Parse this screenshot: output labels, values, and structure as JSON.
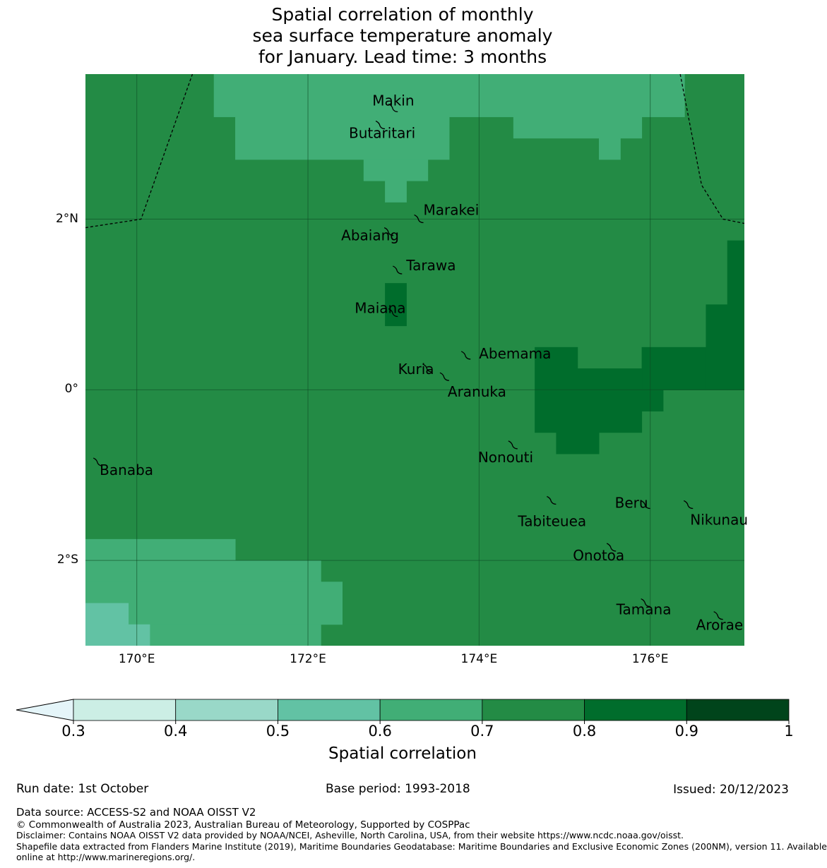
{
  "title": {
    "line1": "Spatial correlation of monthly",
    "line2": "sea surface temperature anomaly",
    "line3": "for January. Lead time: 3 months"
  },
  "map": {
    "lon_range": [
      169.4,
      177.1
    ],
    "lat_range": [
      -3.0,
      3.7
    ],
    "x_ticks": [
      {
        "lon": 170,
        "label": "170°E"
      },
      {
        "lon": 172,
        "label": "172°E"
      },
      {
        "lon": 174,
        "label": "174°E"
      },
      {
        "lon": 176,
        "label": "176°E"
      }
    ],
    "y_ticks": [
      {
        "lat": 2,
        "label": "2°N"
      },
      {
        "lat": 0,
        "label": "0°"
      },
      {
        "lat": -2,
        "label": "2°S"
      }
    ],
    "background_class": "0.7-0.8",
    "correlation_regions": [
      {
        "class": "0.6-0.7",
        "lon": [
          170.9,
          176.4
        ],
        "lat": [
          3.2,
          3.7
        ]
      },
      {
        "class": "0.6-0.7",
        "lon": [
          171.15,
          173.65
        ],
        "lat": [
          2.7,
          3.2
        ]
      },
      {
        "class": "0.6-0.7",
        "lon": [
          172.65,
          173.4
        ],
        "lat": [
          2.45,
          2.7
        ]
      },
      {
        "class": "0.6-0.7",
        "lon": [
          172.9,
          173.15
        ],
        "lat": [
          2.2,
          2.45
        ]
      },
      {
        "class": "0.6-0.7",
        "lon": [
          174.4,
          175.9
        ],
        "lat": [
          2.95,
          3.2
        ]
      },
      {
        "class": "0.6-0.7",
        "lon": [
          175.4,
          175.65
        ],
        "lat": [
          2.7,
          2.95
        ]
      },
      {
        "class": "0.8-0.9",
        "lon": [
          172.9,
          173.15
        ],
        "lat": [
          0.75,
          1.25
        ]
      },
      {
        "class": "0.8-0.9",
        "lon": [
          176.9,
          177.1
        ],
        "lat": [
          0.0,
          1.75
        ]
      },
      {
        "class": "0.8-0.9",
        "lon": [
          176.65,
          176.9
        ],
        "lat": [
          0.0,
          1.0
        ]
      },
      {
        "class": "0.8-0.9",
        "lon": [
          175.9,
          176.65
        ],
        "lat": [
          0.0,
          0.5
        ]
      },
      {
        "class": "0.8-0.9",
        "lon": [
          174.65,
          175.9
        ],
        "lat": [
          0.0,
          0.25
        ]
      },
      {
        "class": "0.8-0.9",
        "lon": [
          174.65,
          175.15
        ],
        "lat": [
          0.25,
          0.5
        ]
      },
      {
        "class": "0.8-0.9",
        "lon": [
          174.65,
          176.15
        ],
        "lat": [
          -0.25,
          0.0
        ]
      },
      {
        "class": "0.8-0.9",
        "lon": [
          174.65,
          175.9
        ],
        "lat": [
          -0.5,
          -0.25
        ]
      },
      {
        "class": "0.8-0.9",
        "lon": [
          174.9,
          175.4
        ],
        "lat": [
          -0.75,
          -0.5
        ]
      },
      {
        "class": "0.6-0.7",
        "lon": [
          169.4,
          171.15
        ],
        "lat": [
          -2.0,
          -1.75
        ]
      },
      {
        "class": "0.6-0.7",
        "lon": [
          169.4,
          172.15
        ],
        "lat": [
          -2.25,
          -2.0
        ]
      },
      {
        "class": "0.6-0.7",
        "lon": [
          169.4,
          172.4
        ],
        "lat": [
          -2.75,
          -2.25
        ]
      },
      {
        "class": "0.6-0.7",
        "lon": [
          169.9,
          172.15
        ],
        "lat": [
          -3.0,
          -2.75
        ]
      },
      {
        "class": "0.5-0.6",
        "lon": [
          169.4,
          169.9
        ],
        "lat": [
          -2.75,
          -2.5
        ]
      },
      {
        "class": "0.5-0.6",
        "lon": [
          169.4,
          170.15
        ],
        "lat": [
          -3.0,
          -2.75
        ]
      }
    ],
    "eez_boundaries": [
      [
        [
          169.4,
          1.9
        ],
        [
          170.05,
          2.0
        ],
        [
          170.65,
          3.7
        ]
      ],
      [
        [
          176.35,
          3.7
        ],
        [
          176.6,
          2.4
        ],
        [
          176.85,
          2.0
        ],
        [
          177.1,
          1.95
        ]
      ]
    ],
    "islands": [
      {
        "name": "Makin",
        "lon": 173.0,
        "lat": 3.3,
        "label_dx": -30,
        "label_dy": -10
      },
      {
        "name": "Butaritari",
        "lon": 172.85,
        "lat": 3.1,
        "label_dx": -45,
        "label_dy": 12
      },
      {
        "name": "Marakei",
        "lon": 173.3,
        "lat": 2.0,
        "label_dx": 6,
        "label_dy": -12
      },
      {
        "name": "Abaiang",
        "lon": 172.95,
        "lat": 1.85,
        "label_dx": -68,
        "label_dy": 6
      },
      {
        "name": "Tarawa",
        "lon": 173.05,
        "lat": 1.4,
        "label_dx": 12,
        "label_dy": -6
      },
      {
        "name": "Maiana",
        "lon": 173.0,
        "lat": 0.9,
        "label_dx": -55,
        "label_dy": -6
      },
      {
        "name": "Abemama",
        "lon": 173.85,
        "lat": 0.4,
        "label_dx": 18,
        "label_dy": -2
      },
      {
        "name": "Kuria",
        "lon": 173.4,
        "lat": 0.25,
        "label_dx": -42,
        "label_dy": 2
      },
      {
        "name": "Aranuka",
        "lon": 173.6,
        "lat": 0.15,
        "label_dx": 4,
        "label_dy": 22
      },
      {
        "name": "Nonouti",
        "lon": 174.4,
        "lat": -0.65,
        "label_dx": -50,
        "label_dy": 18
      },
      {
        "name": "Banaba",
        "lon": 169.55,
        "lat": -0.85,
        "label_dx": 2,
        "label_dy": 12
      },
      {
        "name": "Tabiteuea",
        "lon": 174.85,
        "lat": -1.3,
        "label_dx": -48,
        "label_dy": 30
      },
      {
        "name": "Beru",
        "lon": 175.95,
        "lat": -1.35,
        "label_dx": -44,
        "label_dy": -2
      },
      {
        "name": "Nikunau",
        "lon": 176.45,
        "lat": -1.35,
        "label_dx": 2,
        "label_dy": 22
      },
      {
        "name": "Onotoa",
        "lon": 175.55,
        "lat": -1.85,
        "label_dx": -55,
        "label_dy": 12
      },
      {
        "name": "Tamana",
        "lon": 175.95,
        "lat": -2.5,
        "label_dx": -42,
        "label_dy": 10
      },
      {
        "name": "Arorae",
        "lon": 176.8,
        "lat": -2.65,
        "label_dx": -32,
        "label_dy": 14
      }
    ]
  },
  "colorbar": {
    "label": "Spatial correlation",
    "classes": [
      {
        "range": "0.3-0.4",
        "color": "#cceee5"
      },
      {
        "range": "0.4-0.5",
        "color": "#99d8c8"
      },
      {
        "range": "0.5-0.6",
        "color": "#62c2a4"
      },
      {
        "range": "0.6-0.7",
        "color": "#41ae76"
      },
      {
        "range": "0.7-0.8",
        "color": "#238b45"
      },
      {
        "range": "0.8-0.9",
        "color": "#006d2c"
      },
      {
        "range": "0.9-1",
        "color": "#00441b"
      }
    ],
    "extend_color": "#e5f5f9",
    "ticks": [
      "0.3",
      "0.4",
      "0.5",
      "0.6",
      "0.7",
      "0.8",
      "0.9",
      "1"
    ]
  },
  "footer": {
    "run_date": "Run date: 1st October",
    "base_period": "Base period: 1993-2018",
    "issued": "Issued: 20/12/2023",
    "data_source": "Data source: ACCESS-S2 and NOAA OISST V2",
    "copyright": "© Commonwealth of Australia 2023, Australian Bureau of Meteorology, Supported by COSPPac",
    "disclaimer": "Disclaimer: Contains NOAA OISST V2 data provided by NOAA/NCEI, Asheville, North Carolina, USA, from their website https://www.ncdc.noaa.gov/oisst.",
    "shapefile_line1": "Shapefile data extracted from Flanders Marine Institute (2019), Maritime Boundaries Geodatabase: Maritime Boundaries and Exclusive Economic Zones (200NM), version 11. Available",
    "shapefile_line2": "online at http://www.marineregions.org/."
  }
}
